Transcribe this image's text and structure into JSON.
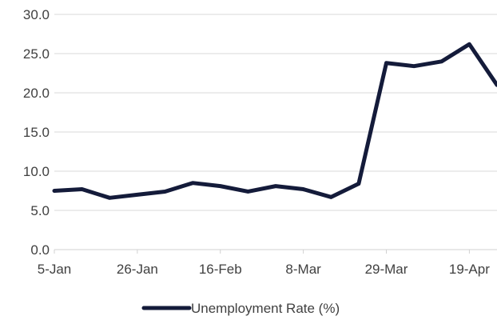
{
  "chart_data": {
    "type": "line",
    "title": "",
    "xlabel": "",
    "ylabel": "",
    "x": [
      "5-Jan",
      "12-Jan",
      "19-Jan",
      "26-Jan",
      "2-Feb",
      "9-Feb",
      "16-Feb",
      "23-Feb",
      "1-Mar",
      "8-Mar",
      "15-Mar",
      "22-Mar",
      "29-Mar",
      "5-Apr",
      "12-Apr",
      "19-Apr",
      "26-Apr"
    ],
    "x_tick_labels": [
      "5-Jan",
      "26-Jan",
      "16-Feb",
      "8-Mar",
      "29-Mar",
      "19-Apr"
    ],
    "y_tick_labels": [
      "0.0",
      "5.0",
      "10.0",
      "15.0",
      "20.0",
      "25.0",
      "30.0"
    ],
    "ylim": [
      0,
      30
    ],
    "grid": true,
    "legend_position": "bottom",
    "series": [
      {
        "name": "Unemployment Rate (%)",
        "color": "#141b3a",
        "values": [
          7.5,
          7.7,
          6.6,
          7.0,
          7.4,
          8.5,
          8.1,
          7.4,
          8.1,
          7.7,
          6.7,
          8.4,
          23.8,
          23.4,
          24.0,
          26.2,
          21.0
        ]
      }
    ]
  }
}
